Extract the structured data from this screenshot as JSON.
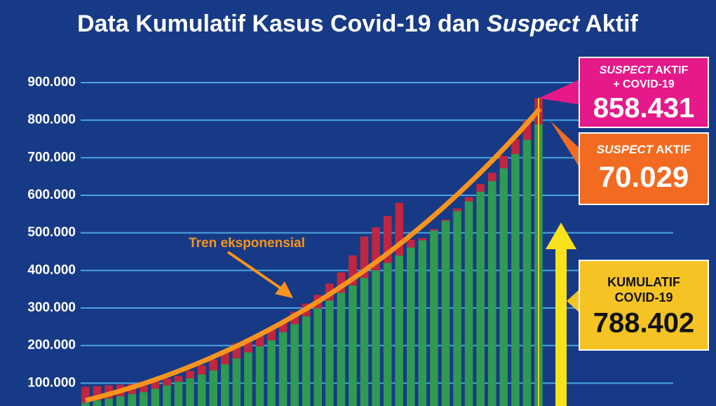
{
  "chart_data": {
    "type": "stacked_bar",
    "title": [
      "Data Kumulatif Kasus Covid-19 dan ",
      "Suspect",
      " Aktif"
    ],
    "ylim": [
      0,
      900000
    ],
    "yticks": [
      {
        "value": 100000,
        "label": "100.000"
      },
      {
        "value": 200000,
        "label": "200.000"
      },
      {
        "value": 300000,
        "label": "300.000"
      },
      {
        "value": 400000,
        "label": "400.000"
      },
      {
        "value": 500000,
        "label": "500.000"
      },
      {
        "value": 600000,
        "label": "600.000"
      },
      {
        "value": 700000,
        "label": "700.000"
      },
      {
        "value": 800000,
        "label": "800.000"
      },
      {
        "value": 900000,
        "label": "900.000"
      }
    ],
    "grid": true,
    "series": [
      {
        "heading": [
          "KUMULATIF",
          "COVID-19"
        ],
        "color": "#2f9a52",
        "values": [
          48000,
          54000,
          59000,
          65000,
          71000,
          76000,
          85000,
          94000,
          104000,
          113000,
          123000,
          134000,
          150000,
          166000,
          182000,
          198000,
          214000,
          236000,
          257000,
          278000,
          299000,
          320000,
          341000,
          360000,
          380000,
          400000,
          420000,
          440000,
          461000,
          480000,
          506000,
          532000,
          558000,
          584000,
          610000,
          638000,
          672000,
          710000,
          748000,
          788402
        ],
        "value_labels": [
          null,
          null,
          null,
          null,
          null,
          null,
          null,
          null,
          null,
          null,
          null,
          null,
          null,
          null,
          null,
          null,
          null,
          null,
          null,
          null,
          null,
          null,
          null,
          null,
          null,
          null,
          null,
          null,
          null,
          null,
          null,
          null,
          null,
          null,
          null,
          null,
          null,
          null,
          null,
          "788.402"
        ]
      },
      {
        "heading": [
          "SUSPECT",
          " AKTIF"
        ],
        "color": "#c0263f",
        "values": [
          42000,
          38000,
          35000,
          31000,
          27000,
          24000,
          21000,
          18000,
          15000,
          20000,
          24000,
          29000,
          35000,
          40000,
          36000,
          34000,
          34000,
          26000,
          33000,
          34000,
          36000,
          45000,
          54000,
          80000,
          110000,
          115000,
          125000,
          140000,
          21000,
          6000,
          4000,
          3000,
          7000,
          11000,
          20000,
          22000,
          33000,
          40000,
          52000,
          70029
        ],
        "value_labels": [
          null,
          null,
          null,
          null,
          null,
          null,
          null,
          null,
          null,
          null,
          null,
          null,
          null,
          null,
          null,
          null,
          null,
          null,
          null,
          null,
          null,
          null,
          null,
          null,
          null,
          null,
          null,
          null,
          null,
          null,
          null,
          null,
          null,
          null,
          null,
          null,
          null,
          null,
          null,
          "70.029"
        ]
      }
    ],
    "total": {
      "heading": [
        "SUSPECT",
        " AKTIF",
        "+ COVID-19"
      ],
      "value": 858431,
      "label": "858.431"
    },
    "trend_label": "Tren eksponensial"
  }
}
